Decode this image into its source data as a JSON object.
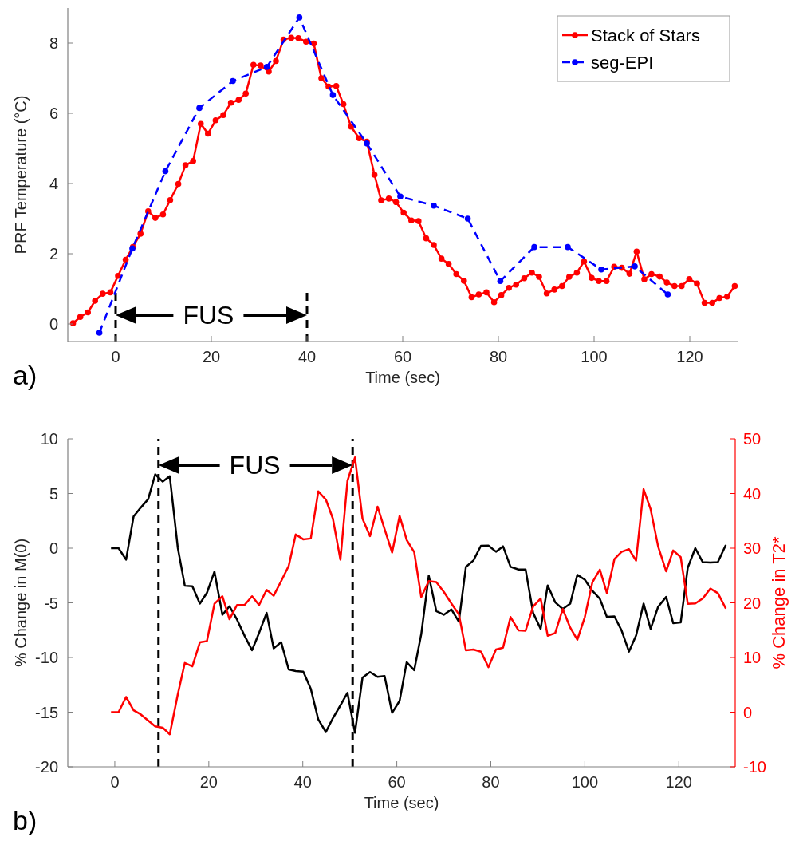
{
  "chart_data": [
    {
      "type": "line",
      "xlabel": "Time (sec)",
      "ylabel": "PRF Temperature (°C)",
      "xlim": [
        -10,
        130
      ],
      "ylim": [
        -0.5,
        9
      ],
      "xticks": [
        0,
        20,
        40,
        60,
        80,
        100,
        120
      ],
      "yticks": [
        0,
        2,
        4,
        6,
        8
      ],
      "marker": "circle",
      "legend": "top right",
      "series": [
        {
          "name": "Stack of Stars",
          "color": "#ff0000",
          "line_style": "solid",
          "x": [
            -8.9,
            -7.4,
            -5.8,
            -4.3,
            -2.7,
            -1.1,
            0.5,
            2.1,
            3.6,
            5.2,
            6.8,
            8.3,
            9.9,
            11.4,
            13.1,
            14.6,
            16.2,
            17.8,
            19.3,
            20.9,
            22.5,
            24.1,
            25.7,
            27.2,
            28.8,
            30.3,
            32,
            33.5,
            35.1,
            36.7,
            38.2,
            39.8,
            41.4,
            43,
            44.5,
            46.1,
            47.6,
            49.2,
            50.9,
            52.5,
            54.1,
            55.5,
            57.1,
            58.6,
            60.2,
            61.8,
            63.3,
            64.9,
            66.5,
            68.1,
            69.6,
            71.2,
            72.8,
            74.4,
            75.9,
            77.5,
            79.1,
            80.6,
            82.2,
            83.7,
            85.4,
            87,
            88.5,
            90.1,
            91.7,
            93.3,
            94.8,
            96.4,
            97.9,
            99.5,
            101,
            102.6,
            104.2,
            105.8,
            107.4,
            108.9,
            110.5,
            112,
            113.7,
            115.2,
            116.8,
            118.3,
            119.9,
            121.5,
            123.1,
            124.7,
            126.2,
            127.8,
            129.4
          ],
          "values": [
            0.02,
            0.2,
            0.33,
            0.66,
            0.86,
            0.9,
            1.37,
            1.83,
            2.19,
            2.57,
            3.21,
            3.02,
            3.12,
            3.53,
            3.99,
            4.52,
            4.64,
            5.7,
            5.42,
            5.8,
            5.95,
            6.3,
            6.38,
            6.56,
            7.38,
            7.36,
            7.19,
            7.49,
            8.1,
            8.15,
            8.14,
            8.04,
            7.99,
            7.0,
            6.76,
            6.78,
            6.26,
            5.62,
            5.29,
            5.19,
            4.25,
            3.52,
            3.57,
            3.47,
            3.17,
            2.95,
            2.93,
            2.44,
            2.25,
            1.86,
            1.71,
            1.42,
            1.23,
            0.76,
            0.84,
            0.9,
            0.62,
            0.82,
            1.03,
            1.12,
            1.3,
            1.46,
            1.34,
            0.87,
            0.98,
            1.08,
            1.34,
            1.46,
            1.78,
            1.31,
            1.22,
            1.22,
            1.63,
            1.6,
            1.43,
            2.06,
            1.27,
            1.42,
            1.35,
            1.18,
            1.08,
            1.08,
            1.28,
            1.15,
            0.6,
            0.6,
            0.74,
            0.78,
            1.08
          ]
        },
        {
          "name": "seg-EPI",
          "color": "#0000ff",
          "line_style": "dashed",
          "x": [
            -3.4,
            3.5,
            10.4,
            17.5,
            24.5,
            31.6,
            38.4,
            45.4,
            52.5,
            59.5,
            66.5,
            73.6,
            80.4,
            87.5,
            94.5,
            101.5,
            108.5,
            115.4
          ],
          "values": [
            -0.25,
            2.15,
            4.35,
            6.15,
            6.92,
            7.32,
            8.73,
            6.52,
            5.14,
            3.63,
            3.37,
            3.0,
            1.22,
            2.19,
            2.19,
            1.55,
            1.64,
            0.84
          ]
        }
      ],
      "ref_lines": [
        {
          "axis": "x",
          "value": 0,
          "color": "#000000",
          "line_style": "dashed"
        },
        {
          "axis": "x",
          "value": 40,
          "color": "#000000",
          "line_style": "dashed"
        }
      ],
      "annotations": [
        "FUS",
        "a)"
      ]
    },
    {
      "type": "line",
      "xlabel": "Time (sec)",
      "ylabel": "% Change in M(0)",
      "y2label": "% Change in T2*",
      "xlim": [
        -10,
        132
      ],
      "ylim": [
        -20,
        10
      ],
      "y2lim": [
        -10,
        50
      ],
      "xticks": [
        0,
        20,
        40,
        60,
        80,
        100,
        120
      ],
      "yticks": [
        -20,
        -15,
        -10,
        -5,
        0,
        5,
        10
      ],
      "y2ticks": [
        -10,
        0,
        10,
        20,
        30,
        40,
        50
      ],
      "series": [
        {
          "color": "#000000",
          "x": [
            -0.8,
            0.8,
            2.4,
            4.0,
            5.5,
            7.1,
            8.6,
            10.2,
            11.7,
            13.4,
            14.9,
            16.5,
            18.1,
            19.6,
            21.2,
            22.9,
            24.4,
            26,
            27.6,
            29.2,
            30.7,
            32.3,
            33.8,
            35.4,
            37,
            38.5,
            40.1,
            41.7,
            43.3,
            44.9,
            46.4,
            48,
            49.5,
            51.1,
            52.7,
            54.3,
            55.9,
            57.4,
            59,
            60.6,
            62.1,
            63.7,
            65.2,
            66.8,
            68.4,
            70,
            71.6,
            73.2,
            74.7,
            76.3,
            77.9,
            79.5,
            81.1,
            82.6,
            84.2,
            85.9,
            87.4,
            89,
            90.6,
            92.1,
            93.7,
            95.3,
            96.9,
            98.4,
            100,
            101.6,
            103.2,
            104.7,
            106.3,
            107.8,
            109.4,
            110.9,
            112.5,
            114,
            115.6,
            117.3,
            118.8,
            120.4,
            121.9,
            123.5,
            125.1,
            126.7,
            128.3,
            130
          ],
          "values": [
            0,
            0,
            -1.05,
            2.9,
            3.7,
            4.48,
            6.75,
            6.09,
            6.58,
            0.04,
            -3.44,
            -3.49,
            -5.07,
            -4.09,
            -2.15,
            -6.1,
            -5.31,
            -6.53,
            -8.0,
            -9.33,
            -7.75,
            -5.92,
            -9.17,
            -8.6,
            -11.1,
            -11.24,
            -11.29,
            -12.87,
            -15.67,
            -16.82,
            -15.55,
            -14.38,
            -13.23,
            -16.89,
            -11.84,
            -11.33,
            -11.77,
            -11.7,
            -15.06,
            -13.96,
            -10.43,
            -11.16,
            -7.87,
            -2.51,
            -5.75,
            -6.09,
            -5.6,
            -6.73,
            -1.71,
            -1.12,
            0.22,
            0.24,
            -0.32,
            0.17,
            -1.71,
            -1.95,
            -1.95,
            -5.92,
            -7.38,
            -3.41,
            -4.95,
            -5.56,
            -5.07,
            -2.44,
            -2.88,
            -3.9,
            -4.63,
            -6.29,
            -6.24,
            -7.51,
            -9.46,
            -8.0,
            -5.07,
            -7.38,
            -5.36,
            -4.46,
            -6.86,
            -6.79,
            -1.79,
            0,
            -1.28,
            -1.32,
            -1.28,
            0.29
          ]
        },
        {
          "color": "#ff0000",
          "axis": "y2",
          "x": [
            -0.8,
            0.8,
            2.4,
            4.0,
            5.5,
            7.1,
            8.6,
            10.2,
            11.7,
            13.4,
            14.9,
            16.5,
            18.1,
            19.6,
            21.2,
            22.9,
            24.4,
            26,
            27.6,
            29.2,
            30.7,
            32.3,
            33.8,
            35.4,
            37,
            38.5,
            40.1,
            41.7,
            43.3,
            44.9,
            46.4,
            48,
            49.5,
            51.1,
            52.7,
            54.3,
            55.9,
            57.4,
            59,
            60.6,
            62.1,
            63.7,
            65.2,
            66.8,
            68.4,
            70,
            71.6,
            73.2,
            74.7,
            76.3,
            77.9,
            79.5,
            81.1,
            82.6,
            84.2,
            85.9,
            87.4,
            89,
            90.6,
            92.1,
            93.7,
            95.3,
            96.9,
            98.4,
            100,
            101.6,
            103.2,
            104.7,
            106.3,
            107.8,
            109.4,
            110.9,
            112.5,
            114,
            115.6,
            117.3,
            118.8,
            120.4,
            121.9,
            123.5,
            125.1,
            126.7,
            128.3,
            130
          ],
          "values": [
            0,
            0,
            2.78,
            0.34,
            -0.39,
            -1.52,
            -2.59,
            -2.84,
            -4.05,
            3.26,
            9.0,
            8.38,
            12.76,
            13.01,
            19.83,
            21.2,
            17.0,
            19.6,
            19.6,
            21.2,
            19.6,
            22.37,
            21.29,
            23.98,
            26.75,
            32.5,
            31.62,
            31.77,
            40.4,
            38.9,
            35.4,
            27.9,
            42.3,
            46.6,
            35.4,
            32.2,
            37.6,
            33.5,
            29.2,
            35.9,
            31.5,
            29.3,
            21.05,
            23.98,
            23.8,
            22.0,
            19.9,
            17.9,
            11.3,
            11.45,
            11.05,
            8.23,
            11.45,
            11.78,
            17.4,
            14.96,
            14.9,
            19.34,
            20.8,
            13.98,
            14.47,
            18.86,
            15.44,
            13.25,
            17.4,
            23.73,
            26.07,
            21.78,
            28.01,
            29.33,
            29.82,
            27.72,
            40.79,
            37.13,
            30.31,
            25.77,
            29.58,
            28.36,
            19.83,
            19.9,
            20.8,
            22.6,
            21.78,
            18.95
          ]
        }
      ],
      "ref_lines": [
        {
          "axis": "x",
          "value": 9.3,
          "color": "#000000",
          "line_style": "dashed"
        },
        {
          "axis": "x",
          "value": 50.6,
          "color": "#000000",
          "line_style": "dashed"
        }
      ],
      "annotations": [
        "FUS",
        "b)"
      ]
    }
  ]
}
